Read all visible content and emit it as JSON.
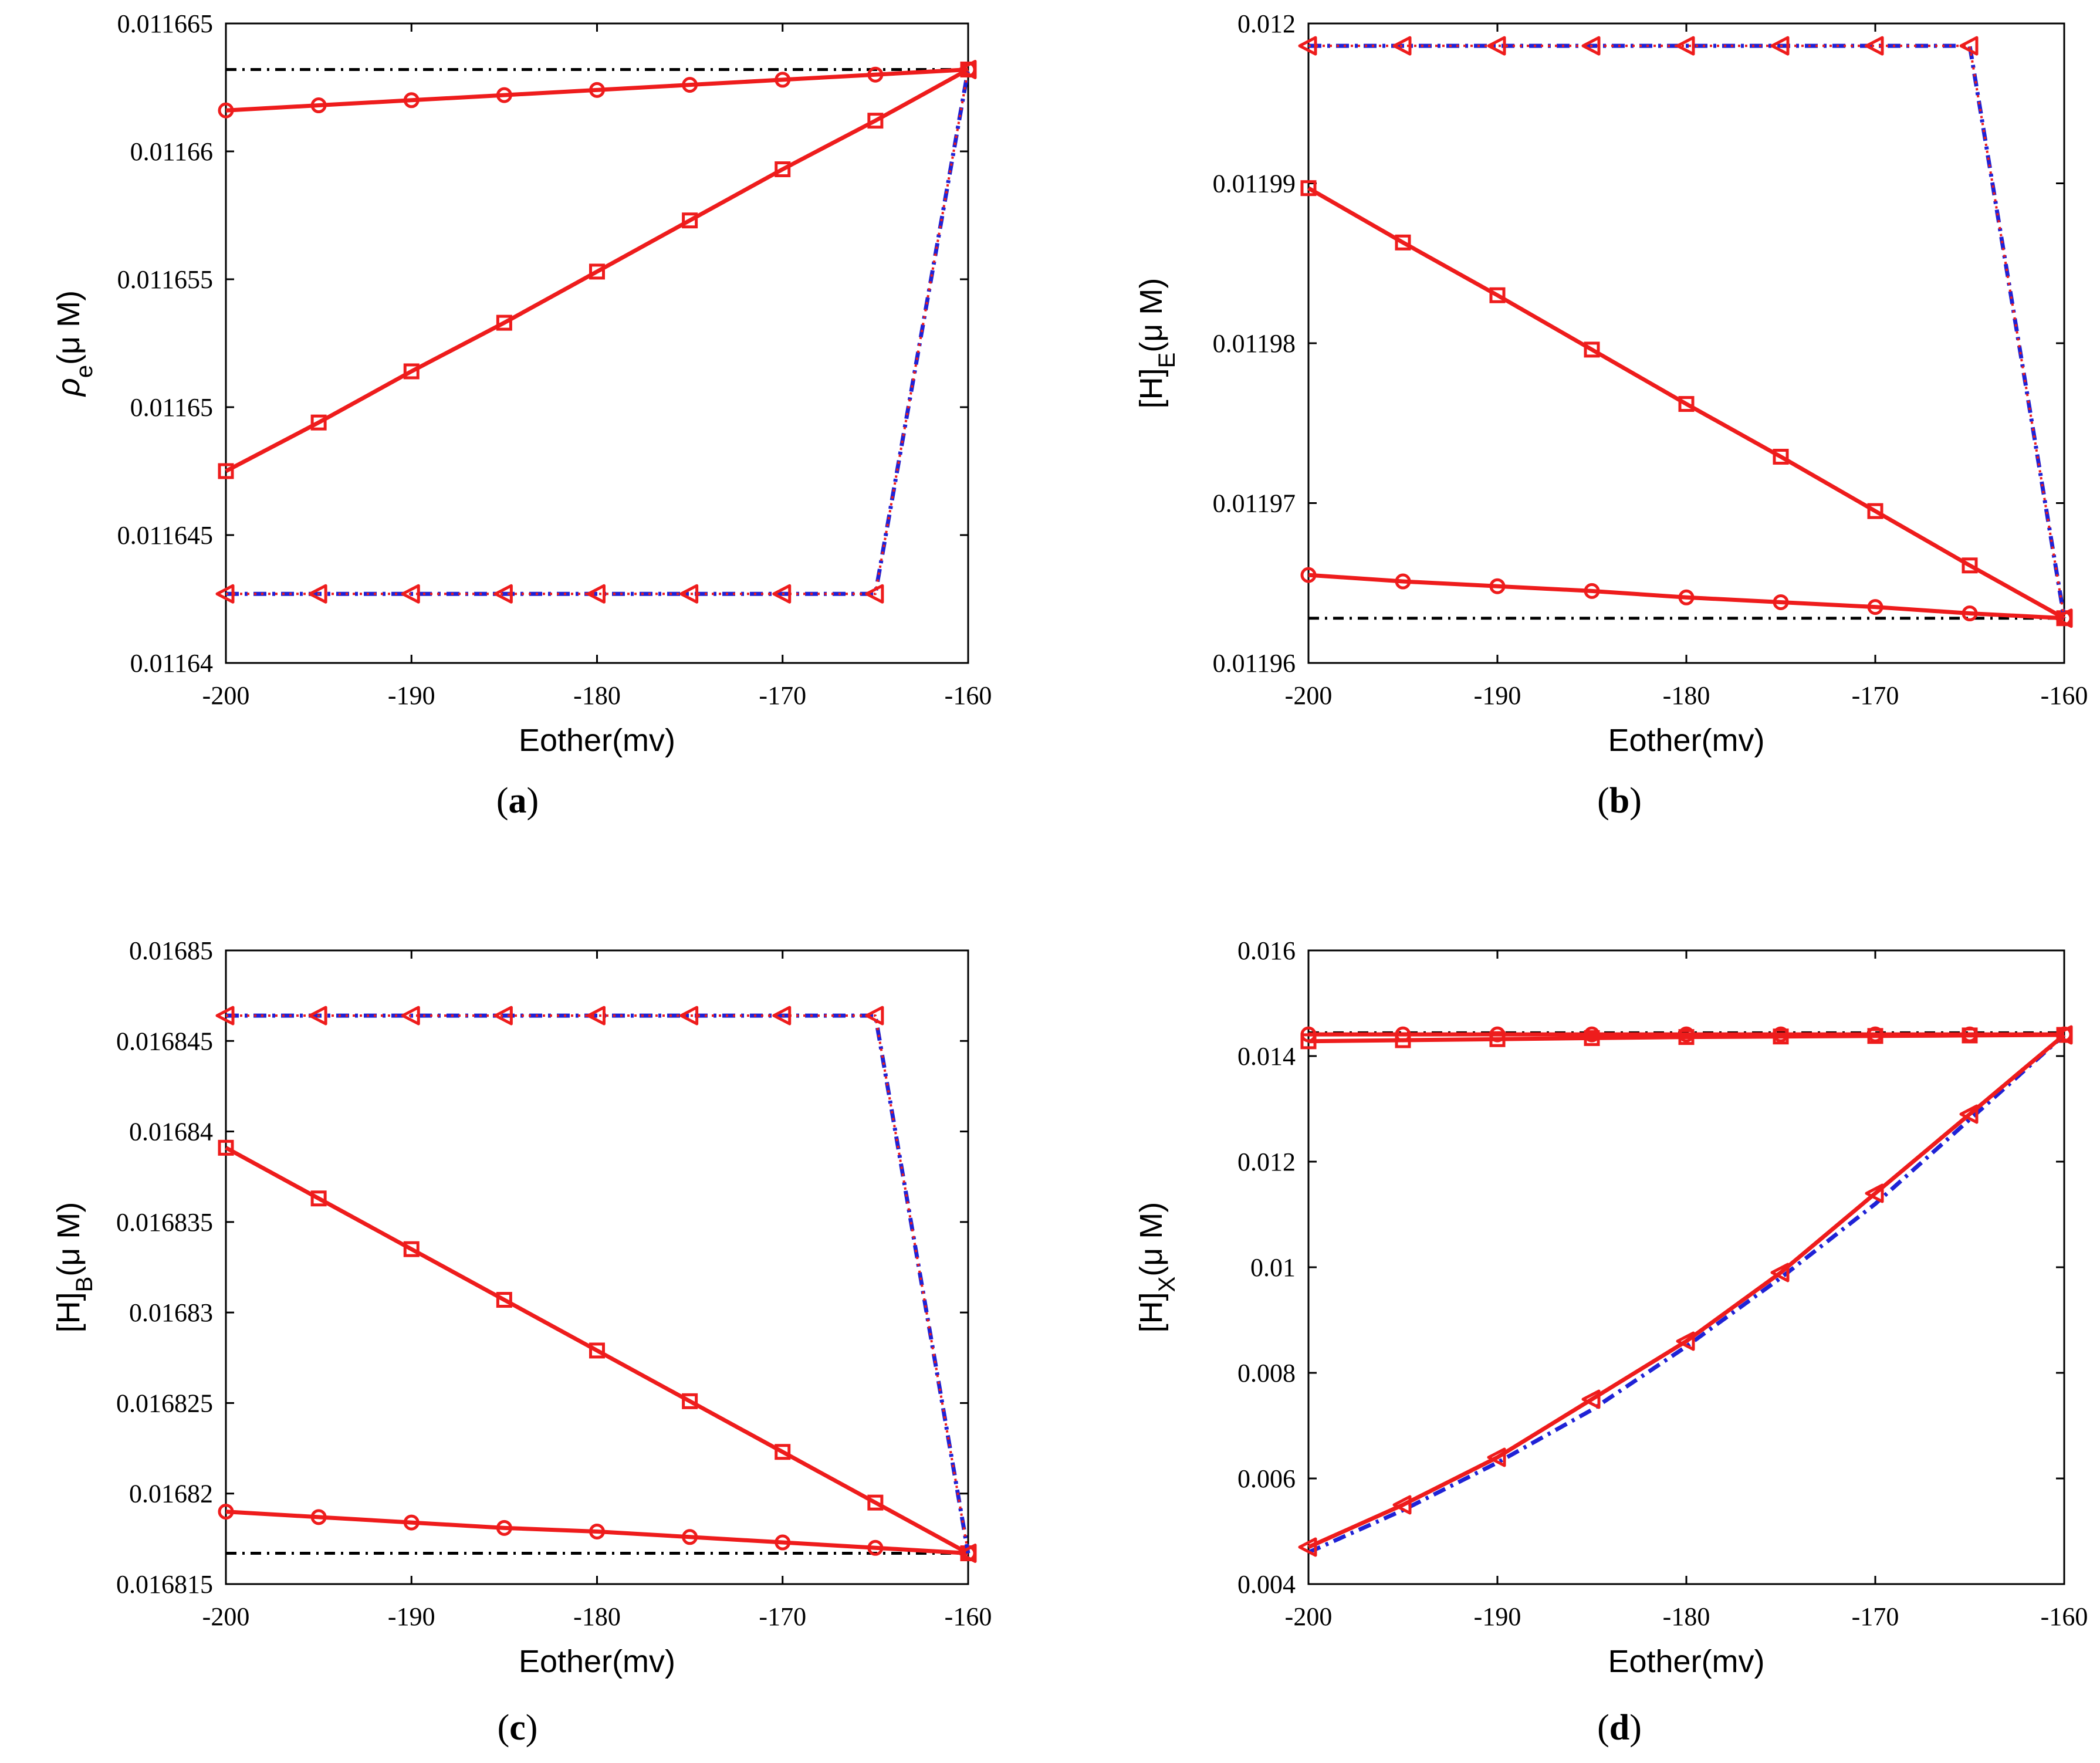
{
  "colors": {
    "red": "#ee1c1c",
    "blue": "#1f22d6",
    "black": "#000000"
  },
  "chart_data": [
    {
      "type": "line",
      "panel_label": "a",
      "xlabel": "Eother(mv)",
      "ylabel": {
        "base": "ρ",
        "sub": "e",
        "unit": "(μ M)"
      },
      "xlim": [
        -200,
        -160
      ],
      "ylim": [
        0.01164,
        0.011665
      ],
      "xticks": [
        -200,
        -190,
        -180,
        -170,
        -160
      ],
      "xtick_labels": [
        "-200",
        "-190",
        "-180",
        "-170",
        "-160"
      ],
      "yticks": [
        0.01164,
        0.011645,
        0.01165,
        0.011655,
        0.01166,
        0.011665
      ],
      "ytick_labels": [
        "0.01164",
        "0.011645",
        "0.01165",
        "0.011655",
        "0.01166",
        "0.011665"
      ],
      "series": [
        {
          "name": "reference",
          "style": "black-dashdot",
          "marker": "none",
          "x": [
            -200,
            -160
          ],
          "y": [
            0.0116632,
            0.0116632
          ]
        },
        {
          "name": "circles",
          "style": "red-solid",
          "marker": "circle",
          "x": [
            -200,
            -195,
            -190,
            -185,
            -180,
            -175,
            -170,
            -165,
            -160
          ],
          "y": [
            0.0116616,
            0.0116618,
            0.011662,
            0.0116622,
            0.0116624,
            0.0116626,
            0.0116628,
            0.011663,
            0.0116632
          ]
        },
        {
          "name": "squares",
          "style": "red-solid",
          "marker": "square",
          "x": [
            -200,
            -195,
            -190,
            -185,
            -180,
            -175,
            -170,
            -165,
            -160
          ],
          "y": [
            0.0116475,
            0.0116494,
            0.0116514,
            0.0116533,
            0.0116553,
            0.0116573,
            0.0116593,
            0.0116612,
            0.0116632
          ]
        },
        {
          "name": "blue",
          "style": "blue-dashdot",
          "marker": "none",
          "x": [
            -200,
            -195,
            -190,
            -185,
            -180,
            -175,
            -170,
            -165,
            -160
          ],
          "y": [
            0.0116427,
            0.0116427,
            0.0116427,
            0.0116427,
            0.0116427,
            0.0116427,
            0.0116427,
            0.0116427,
            0.0116632
          ]
        },
        {
          "name": "triangles",
          "style": "red-dotted",
          "marker": "triangle-left",
          "x": [
            -200,
            -195,
            -190,
            -185,
            -180,
            -175,
            -170,
            -165,
            -160
          ],
          "y": [
            0.0116427,
            0.0116427,
            0.0116427,
            0.0116427,
            0.0116427,
            0.0116427,
            0.0116427,
            0.0116427,
            0.0116632
          ]
        }
      ]
    },
    {
      "type": "line",
      "panel_label": "b",
      "xlabel": "Eother(mv)",
      "ylabel": {
        "base": "[H]",
        "sub": "E",
        "unit": "(μ M)"
      },
      "xlim": [
        -200,
        -160
      ],
      "ylim": [
        0.01196,
        0.012
      ],
      "xticks": [
        -200,
        -190,
        -180,
        -170,
        -160
      ],
      "xtick_labels": [
        "-200",
        "-190",
        "-180",
        "-170",
        "-160"
      ],
      "yticks": [
        0.01196,
        0.01197,
        0.01198,
        0.01199,
        0.012
      ],
      "ytick_labels": [
        "0.01196",
        "0.01197",
        "0.01198",
        "0.01199",
        "0.012"
      ],
      "series": [
        {
          "name": "reference",
          "style": "black-dashdot",
          "marker": "none",
          "x": [
            -200,
            -160
          ],
          "y": [
            0.0119628,
            0.0119628
          ]
        },
        {
          "name": "circles",
          "style": "red-solid",
          "marker": "circle",
          "x": [
            -200,
            -195,
            -190,
            -185,
            -180,
            -175,
            -170,
            -165,
            -160
          ],
          "y": [
            0.0119655,
            0.0119651,
            0.0119648,
            0.0119645,
            0.0119641,
            0.0119638,
            0.0119635,
            0.0119631,
            0.0119628
          ]
        },
        {
          "name": "squares",
          "style": "red-solid",
          "marker": "square",
          "x": [
            -200,
            -195,
            -190,
            -185,
            -180,
            -175,
            -170,
            -165,
            -160
          ],
          "y": [
            0.0119897,
            0.0119863,
            0.011983,
            0.0119796,
            0.0119762,
            0.0119729,
            0.0119695,
            0.0119661,
            0.0119628
          ]
        },
        {
          "name": "blue",
          "style": "blue-dashdot",
          "marker": "none",
          "x": [
            -200,
            -195,
            -190,
            -185,
            -180,
            -175,
            -170,
            -165,
            -160
          ],
          "y": [
            0.0119986,
            0.0119986,
            0.0119986,
            0.0119986,
            0.0119986,
            0.0119986,
            0.0119986,
            0.0119986,
            0.0119628
          ]
        },
        {
          "name": "triangles",
          "style": "red-dotted",
          "marker": "triangle-left",
          "x": [
            -200,
            -195,
            -190,
            -185,
            -180,
            -175,
            -170,
            -165,
            -160
          ],
          "y": [
            0.0119986,
            0.0119986,
            0.0119986,
            0.0119986,
            0.0119986,
            0.0119986,
            0.0119986,
            0.0119986,
            0.0119628
          ]
        }
      ]
    },
    {
      "type": "line",
      "panel_label": "c",
      "xlabel": "Eother(mv)",
      "ylabel": {
        "base": "[H]",
        "sub": "B",
        "unit": "(μ M)"
      },
      "xlim": [
        -200,
        -160
      ],
      "ylim": [
        0.016815,
        0.01685
      ],
      "xticks": [
        -200,
        -190,
        -180,
        -170,
        -160
      ],
      "xtick_labels": [
        "-200",
        "-190",
        "-180",
        "-170",
        "-160"
      ],
      "yticks": [
        0.016815,
        0.01682,
        0.016825,
        0.01683,
        0.016835,
        0.01684,
        0.016845,
        0.01685
      ],
      "ytick_labels": [
        "0.016815",
        "0.01682",
        "0.016825",
        "0.01683",
        "0.016835",
        "0.01684",
        "0.016845",
        "0.01685"
      ],
      "series": [
        {
          "name": "reference",
          "style": "black-dashdot",
          "marker": "none",
          "x": [
            -200,
            -160
          ],
          "y": [
            0.0168167,
            0.0168167
          ]
        },
        {
          "name": "circles",
          "style": "red-solid",
          "marker": "circle",
          "x": [
            -200,
            -195,
            -190,
            -185,
            -180,
            -175,
            -170,
            -165,
            -160
          ],
          "y": [
            0.016819,
            0.0168187,
            0.0168184,
            0.0168181,
            0.0168179,
            0.0168176,
            0.0168173,
            0.016817,
            0.0168167
          ]
        },
        {
          "name": "squares",
          "style": "red-solid",
          "marker": "square",
          "x": [
            -200,
            -195,
            -190,
            -185,
            -180,
            -175,
            -170,
            -165,
            -160
          ],
          "y": [
            0.0168391,
            0.0168363,
            0.0168335,
            0.0168307,
            0.0168279,
            0.0168251,
            0.0168223,
            0.0168195,
            0.0168167
          ]
        },
        {
          "name": "blue",
          "style": "blue-dashdot",
          "marker": "none",
          "x": [
            -200,
            -195,
            -190,
            -185,
            -180,
            -175,
            -170,
            -165,
            -160
          ],
          "y": [
            0.0168464,
            0.0168464,
            0.0168464,
            0.0168464,
            0.0168464,
            0.0168464,
            0.0168464,
            0.0168464,
            0.0168167
          ]
        },
        {
          "name": "triangles",
          "style": "red-dotted",
          "marker": "triangle-left",
          "x": [
            -200,
            -195,
            -190,
            -185,
            -180,
            -175,
            -170,
            -165,
            -160
          ],
          "y": [
            0.0168464,
            0.0168464,
            0.0168464,
            0.0168464,
            0.0168464,
            0.0168464,
            0.0168464,
            0.0168464,
            0.0168167
          ]
        }
      ]
    },
    {
      "type": "line",
      "panel_label": "d",
      "xlabel": "Eother(mv)",
      "ylabel": {
        "base": "[H]",
        "sub": "X",
        "unit": "(μ M)"
      },
      "xlim": [
        -200,
        -160
      ],
      "ylim": [
        0.004,
        0.016
      ],
      "xticks": [
        -200,
        -190,
        -180,
        -170,
        -160
      ],
      "xtick_labels": [
        "-200",
        "-190",
        "-180",
        "-170",
        "-160"
      ],
      "yticks": [
        0.004,
        0.006,
        0.008,
        0.01,
        0.012,
        0.014,
        0.016
      ],
      "ytick_labels": [
        "0.004",
        "0.006",
        "0.008",
        "0.01",
        "0.012",
        "0.014",
        "0.016"
      ],
      "series": [
        {
          "name": "reference",
          "style": "black-dashdot",
          "marker": "none",
          "x": [
            -200,
            -160
          ],
          "y": [
            0.01444,
            0.01444
          ]
        },
        {
          "name": "circles",
          "style": "red-solid",
          "marker": "circle",
          "x": [
            -200,
            -195,
            -190,
            -185,
            -180,
            -175,
            -170,
            -165,
            -160
          ],
          "y": [
            0.01441,
            0.01441,
            0.01441,
            0.01441,
            0.01441,
            0.01441,
            0.01441,
            0.01441,
            0.01441
          ]
        },
        {
          "name": "squares",
          "style": "red-solid",
          "marker": "square",
          "x": [
            -200,
            -195,
            -190,
            -185,
            -180,
            -175,
            -170,
            -165,
            -160
          ],
          "y": [
            0.01428,
            0.0143,
            0.01432,
            0.01434,
            0.01436,
            0.01437,
            0.01438,
            0.01439,
            0.0144
          ]
        },
        {
          "name": "blue",
          "style": "blue-dashdot",
          "marker": "none",
          "x": [
            -200,
            -195,
            -190,
            -185,
            -180,
            -175,
            -170,
            -165,
            -160
          ],
          "y": [
            0.0046,
            0.0054,
            0.0063,
            0.0073,
            0.0085,
            0.0098,
            0.0112,
            0.0128,
            0.0144
          ]
        },
        {
          "name": "triangles",
          "style": "red-solid",
          "marker": "triangle-left",
          "x": [
            -200,
            -195,
            -190,
            -185,
            -180,
            -175,
            -170,
            -165,
            -160
          ],
          "y": [
            0.0047,
            0.0055,
            0.0064,
            0.0075,
            0.0086,
            0.0099,
            0.0114,
            0.0129,
            0.0144
          ]
        }
      ]
    }
  ]
}
